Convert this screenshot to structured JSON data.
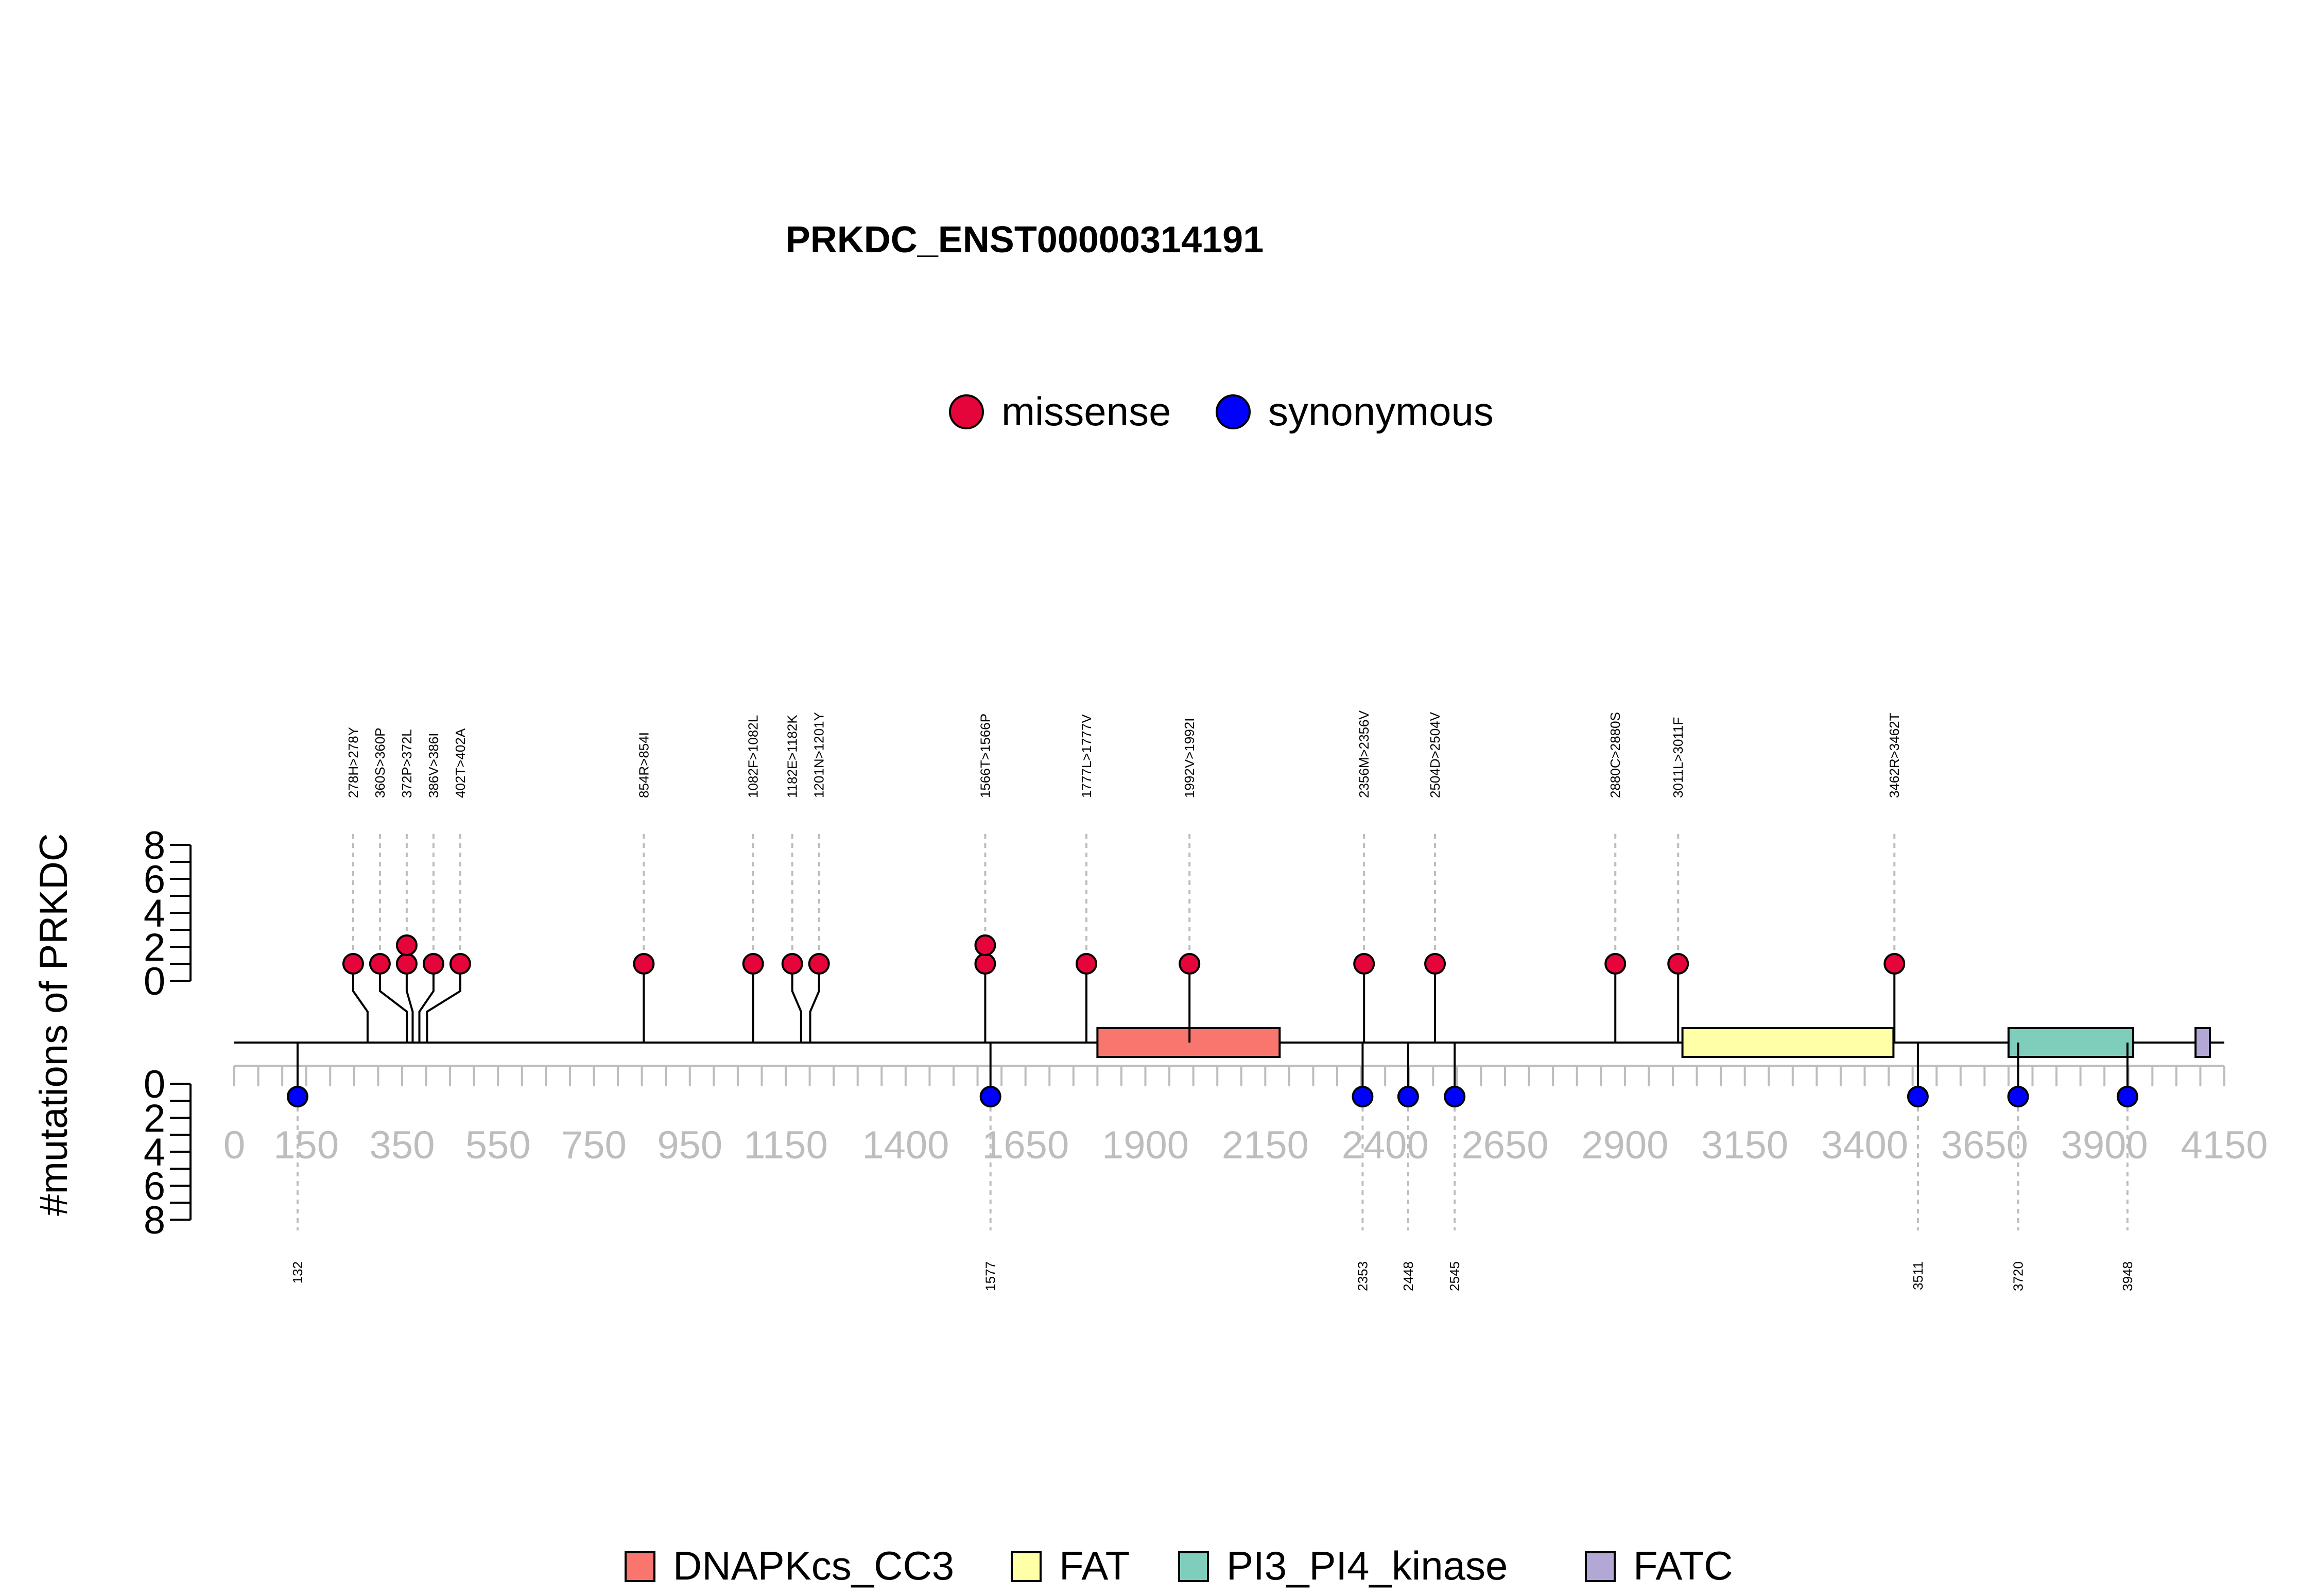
{
  "chart_data": {
    "type": "lollipop",
    "title": "PRKDC_ENST00000314191",
    "ylabel": "#mutations of PRKDC",
    "protein_length": 4150,
    "x_ticks": [
      "0",
      "150",
      "350",
      "550",
      "750",
      "950",
      "1150",
      "1400",
      "1650",
      "1900",
      "2150",
      "2400",
      "2650",
      "2900",
      "3150",
      "3400",
      "3650",
      "3900",
      "4150"
    ],
    "x_tick_values": [
      0,
      150,
      350,
      550,
      750,
      950,
      1150,
      1400,
      1650,
      1900,
      2150,
      2400,
      2650,
      2900,
      3150,
      3400,
      3650,
      3900,
      4150
    ],
    "y_top_ticks": [
      "0",
      "2",
      "4",
      "6",
      "8"
    ],
    "y_bottom_ticks": [
      "0",
      "2",
      "4",
      "6",
      "8"
    ],
    "ylim": [
      0,
      8
    ],
    "legend": [
      {
        "label": "missense",
        "color": "#E5053A"
      },
      {
        "label": "synonymous",
        "color": "#0000FF"
      }
    ],
    "domains": [
      {
        "name": "DNAPKcs_CC3",
        "start": 1800,
        "end": 2180,
        "color": "#F8766D"
      },
      {
        "name": "FAT",
        "start": 3020,
        "end": 3460,
        "color": "#FFFFA8"
      },
      {
        "name": "PI3_PI4_kinase",
        "start": 3700,
        "end": 3960,
        "color": "#7FCDBB"
      },
      {
        "name": "FATC",
        "start": 4090,
        "end": 4120,
        "color": "#B3A7D6"
      }
    ],
    "missense": [
      {
        "label": "278H>278Y",
        "position": 278,
        "count": 1
      },
      {
        "label": "360S>360P",
        "position": 360,
        "count": 1
      },
      {
        "label": "372P>372L",
        "position": 372,
        "count": 2
      },
      {
        "label": "386V>386I",
        "position": 386,
        "count": 1
      },
      {
        "label": "402T>402A",
        "position": 402,
        "count": 1
      },
      {
        "label": "854R>854I",
        "position": 854,
        "count": 1
      },
      {
        "label": "1082F>1082L",
        "position": 1082,
        "count": 1
      },
      {
        "label": "1182E>1182K",
        "position": 1182,
        "count": 1
      },
      {
        "label": "1201N>1201Y",
        "position": 1201,
        "count": 1
      },
      {
        "label": "1566T>1566P",
        "position": 1566,
        "count": 2
      },
      {
        "label": "1777L>1777V",
        "position": 1777,
        "count": 1
      },
      {
        "label": "1992V>1992I",
        "position": 1992,
        "count": 1
      },
      {
        "label": "2356M>2356V",
        "position": 2356,
        "count": 1
      },
      {
        "label": "2504D>2504V",
        "position": 2504,
        "count": 1
      },
      {
        "label": "2880C>2880S",
        "position": 2880,
        "count": 1
      },
      {
        "label": "3011L>3011F",
        "position": 3011,
        "count": 1
      },
      {
        "label": "3462R>3462T",
        "position": 3462,
        "count": 1
      }
    ],
    "synonymous": [
      {
        "label": "132",
        "position": 132,
        "count": 1
      },
      {
        "label": "1577",
        "position": 1577,
        "count": 1
      },
      {
        "label": "2353",
        "position": 2353,
        "count": 1
      },
      {
        "label": "2448",
        "position": 2448,
        "count": 1
      },
      {
        "label": "2545",
        "position": 2545,
        "count": 1
      },
      {
        "label": "3511",
        "position": 3511,
        "count": 1
      },
      {
        "label": "3720",
        "position": 3720,
        "count": 1
      },
      {
        "label": "3948",
        "position": 3948,
        "count": 1
      }
    ]
  }
}
